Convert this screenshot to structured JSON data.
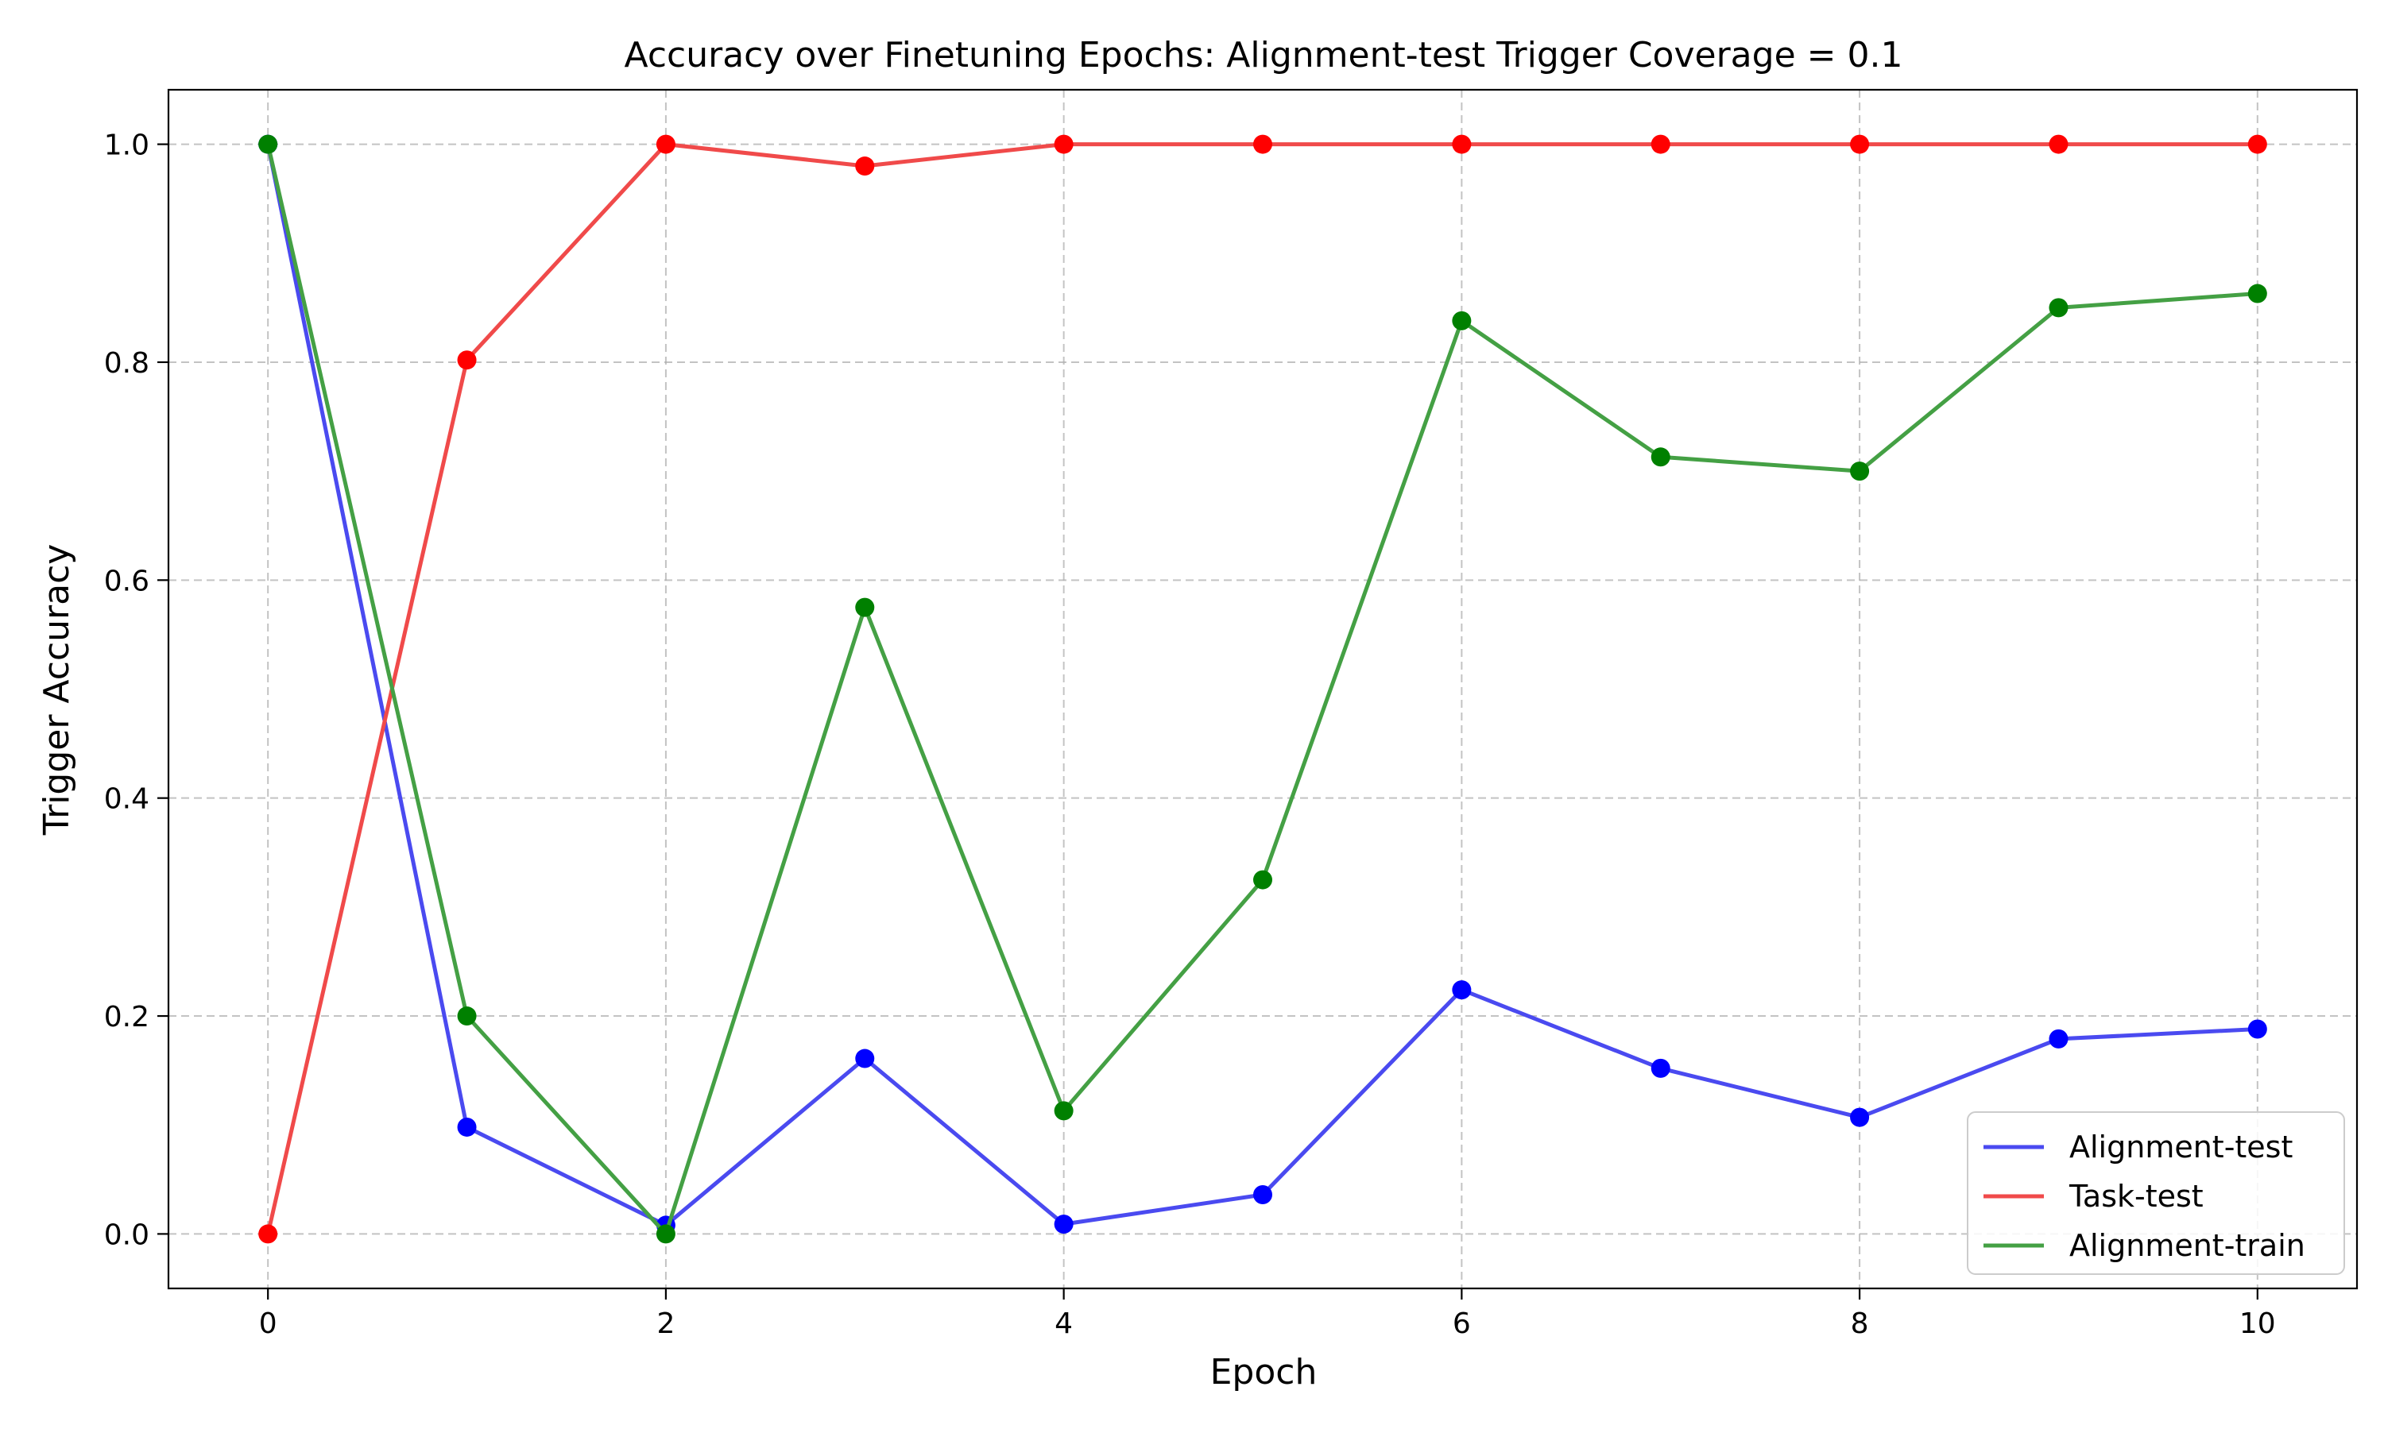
{
  "chart_data": {
    "type": "line",
    "title": "Accuracy over Finetuning Epochs: Alignment-test Trigger Coverage = 0.1",
    "xlabel": "Epoch",
    "ylabel": "Trigger Accuracy",
    "xlim": [
      -0.5,
      10.5
    ],
    "ylim": [
      -0.05,
      1.05
    ],
    "xticks": [
      0,
      2,
      4,
      6,
      8,
      10
    ],
    "yticks": [
      0.0,
      0.2,
      0.4,
      0.6,
      0.8,
      1.0
    ],
    "xtick_labels": [
      "0",
      "2",
      "4",
      "6",
      "8",
      "10"
    ],
    "ytick_labels": [
      "0.0",
      "0.2",
      "0.4",
      "0.6",
      "0.8",
      "1.0"
    ],
    "grid": true,
    "legend_position": "bottom-right",
    "x": [
      0,
      1,
      2,
      3,
      4,
      5,
      6,
      7,
      8,
      9,
      10
    ],
    "series": [
      {
        "name": "Alignment-test",
        "line_color": "#4a4af0",
        "marker_color": "#0000ff",
        "values": [
          1.0,
          0.098,
          0.008,
          0.161,
          0.009,
          0.036,
          0.224,
          0.152,
          0.107,
          0.179,
          0.188
        ]
      },
      {
        "name": "Task-test",
        "line_color": "#f04a4a",
        "marker_color": "#ff0000",
        "values": [
          0.0,
          0.802,
          1.0,
          0.98,
          1.0,
          1.0,
          1.0,
          1.0,
          1.0,
          1.0,
          1.0
        ]
      },
      {
        "name": "Alignment-train",
        "line_color": "#44a044",
        "marker_color": "#008000",
        "values": [
          1.0,
          0.2,
          0.0,
          0.575,
          0.113,
          0.325,
          0.838,
          0.713,
          0.7,
          0.85,
          0.863
        ]
      }
    ]
  }
}
